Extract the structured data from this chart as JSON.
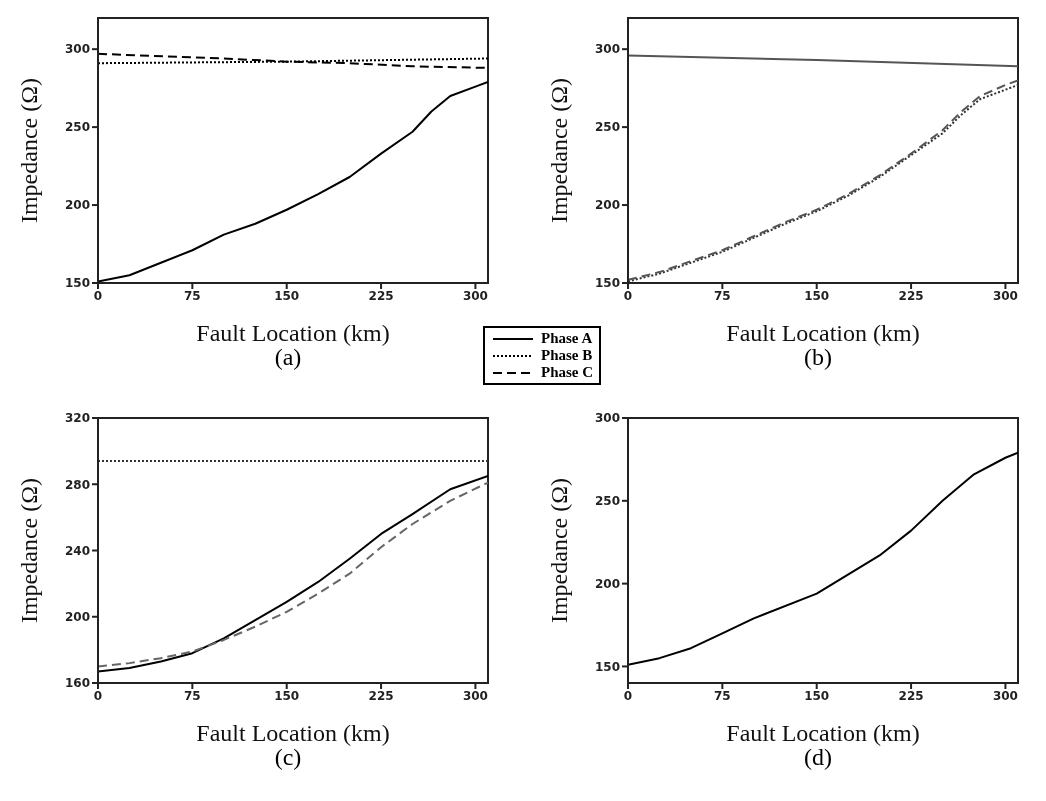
{
  "chart_data": [
    {
      "type": "line",
      "title": "(a)",
      "xlabel": "Fault Location (km)",
      "ylabel": "Impedance (Ω)",
      "xlim": [
        0,
        310
      ],
      "xticks": [
        0,
        75,
        150,
        225,
        300
      ],
      "ylim": [
        150,
        320
      ],
      "yticks": [
        150,
        200,
        250,
        300
      ],
      "legend": "bottom right",
      "marker": "none",
      "series": [
        {
          "name": "Phase A",
          "color": "#000000",
          "line_style": "solid",
          "x": [
            0,
            25,
            50,
            75,
            100,
            125,
            150,
            175,
            200,
            225,
            250,
            265,
            280,
            300,
            310
          ],
          "values": [
            151,
            155,
            163,
            171,
            181,
            188,
            197,
            207,
            218,
            233,
            247,
            260,
            270,
            276,
            279
          ]
        },
        {
          "name": "Phase B",
          "color": "#000000",
          "line_style": "dotted",
          "x": [
            0,
            150,
            310
          ],
          "values": [
            291,
            292,
            294
          ]
        },
        {
          "name": "Phase C",
          "color": "#000000",
          "line_style": "dashed",
          "x": [
            0,
            100,
            150,
            200,
            250,
            310
          ],
          "values": [
            297,
            294,
            292,
            291,
            289,
            288
          ]
        }
      ]
    },
    {
      "type": "line",
      "title": "(b)",
      "xlabel": "Fault Location (km)",
      "ylabel": "Impedance (Ω)",
      "xlim": [
        0,
        310
      ],
      "xticks": [
        0,
        75,
        150,
        225,
        300
      ],
      "ylim": [
        150,
        320
      ],
      "yticks": [
        150,
        200,
        250,
        300
      ],
      "marker": "none",
      "series": [
        {
          "color": "#555555",
          "line_style": "solid",
          "x": [
            0,
            150,
            310
          ],
          "values": [
            296,
            293,
            289
          ]
        },
        {
          "color": "#333333",
          "line_style": "dotted",
          "x": [
            0,
            25,
            50,
            75,
            100,
            125,
            150,
            175,
            200,
            225,
            250,
            265,
            280,
            300,
            310
          ],
          "values": [
            151,
            156,
            163,
            170,
            179,
            188,
            196,
            206,
            218,
            232,
            246,
            258,
            268,
            274,
            277
          ]
        },
        {
          "color": "#555555",
          "line_style": "dashed",
          "x": [
            0,
            25,
            50,
            75,
            100,
            125,
            150,
            175,
            200,
            225,
            250,
            265,
            280,
            300,
            310
          ],
          "values": [
            152,
            157,
            164,
            171,
            180,
            189,
            197,
            207,
            219,
            233,
            248,
            260,
            270,
            277,
            280
          ]
        }
      ]
    },
    {
      "type": "line",
      "title": "(c)",
      "xlabel": "Fault Location (km)",
      "ylabel": "Impedance (Ω)",
      "xlim": [
        0,
        310
      ],
      "xticks": [
        0,
        75,
        150,
        225,
        300
      ],
      "ylim": [
        160,
        320
      ],
      "yticks": [
        160,
        200,
        240,
        280,
        320
      ],
      "marker": "none",
      "series": [
        {
          "color": "#000000",
          "line_style": "solid",
          "x": [
            0,
            25,
            50,
            75,
            100,
            125,
            150,
            175,
            200,
            225,
            250,
            280,
            310
          ],
          "values": [
            167,
            169,
            173,
            178,
            187,
            198,
            209,
            221,
            235,
            250,
            262,
            277,
            285
          ]
        },
        {
          "color": "#333333",
          "line_style": "dotted",
          "x": [
            0,
            310
          ],
          "values": [
            294,
            294
          ]
        },
        {
          "color": "#666666",
          "line_style": "dashed",
          "x": [
            0,
            25,
            50,
            75,
            100,
            125,
            150,
            175,
            200,
            225,
            250,
            280,
            310
          ],
          "values": [
            170,
            172,
            175,
            179,
            186,
            194,
            203,
            214,
            226,
            242,
            256,
            270,
            281
          ]
        }
      ]
    },
    {
      "type": "line",
      "title": "(d)",
      "xlabel": "Fault Location (km)",
      "ylabel": "Impedance (Ω)",
      "xlim": [
        0,
        310
      ],
      "xticks": [
        0,
        75,
        150,
        225,
        300
      ],
      "ylim": [
        140,
        300
      ],
      "yticks": [
        150,
        200,
        250,
        300
      ],
      "marker": "none",
      "series": [
        {
          "color": "#000000",
          "line_style": "solid",
          "x": [
            0,
            25,
            50,
            75,
            100,
            150,
            200,
            225,
            250,
            275,
            300,
            310
          ],
          "values": [
            151,
            155,
            161,
            170,
            179,
            194,
            217,
            232,
            250,
            266,
            276,
            279
          ]
        }
      ]
    }
  ]
}
